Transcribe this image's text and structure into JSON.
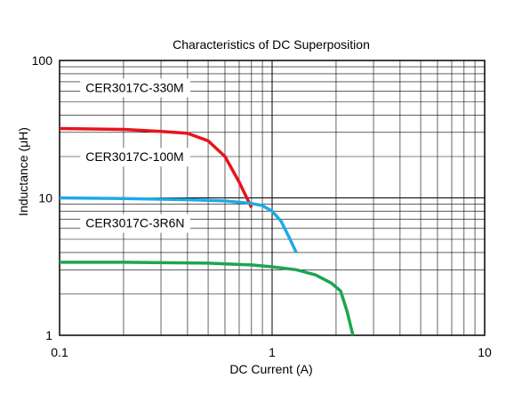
{
  "chart_data": {
    "type": "line",
    "title": "Characteristics of DC Superposition",
    "xlabel": "DC Current (A)",
    "ylabel": "Inductance  (μH)",
    "x_scale": "log",
    "y_scale": "log",
    "xlim": [
      0.1,
      10
    ],
    "ylim": [
      1,
      100
    ],
    "x_tick_labels": [
      "0.1",
      "1",
      "10"
    ],
    "y_tick_labels": [
      "1",
      "10",
      "100"
    ],
    "grid": true,
    "series": [
      {
        "name": "CER3017C-330M",
        "color": "#e8141b",
        "label_at": [
          0.13,
          59
        ],
        "x": [
          0.1,
          0.2,
          0.3,
          0.4,
          0.5,
          0.6,
          0.7,
          0.8
        ],
        "y": [
          32,
          31.5,
          30.5,
          29.5,
          26,
          20,
          13,
          8.5
        ]
      },
      {
        "name": "CER3017C-100M",
        "color": "#1eaae6",
        "label_at": [
          0.13,
          18.5
        ],
        "x": [
          0.1,
          0.2,
          0.4,
          0.6,
          0.8,
          0.9,
          1.0,
          1.1,
          1.2,
          1.3
        ],
        "y": [
          10,
          9.9,
          9.7,
          9.5,
          9.1,
          8.8,
          8.0,
          6.8,
          5.2,
          4.0
        ]
      },
      {
        "name": "CER3017C-3R6N",
        "color": "#1ea550",
        "label_at": [
          0.13,
          6.1
        ],
        "x": [
          0.1,
          0.2,
          0.5,
          0.8,
          1.0,
          1.3,
          1.6,
          1.9,
          2.1,
          2.25,
          2.4
        ],
        "y": [
          3.4,
          3.4,
          3.35,
          3.25,
          3.15,
          3.0,
          2.75,
          2.4,
          2.1,
          1.5,
          1.0
        ]
      }
    ]
  }
}
